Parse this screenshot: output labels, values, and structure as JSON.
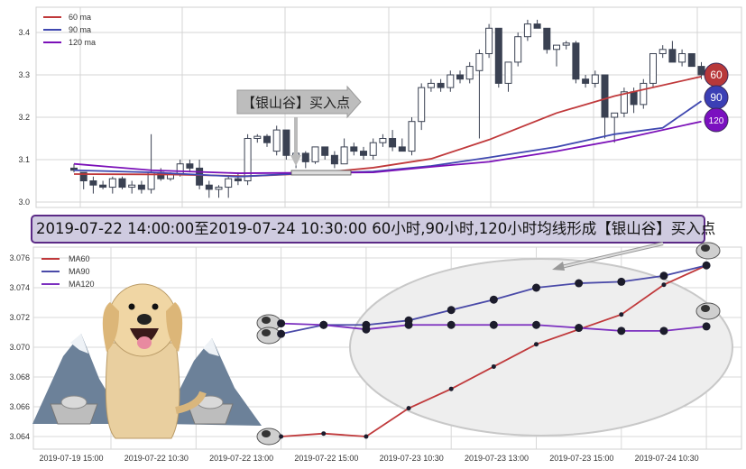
{
  "chart_data": [
    {
      "type": "candlestick",
      "ylim": [
        2.99,
        3.46
      ],
      "yticks": [
        "3.0",
        "3.1",
        "3.2",
        "3.3",
        "3.4"
      ],
      "grid": true,
      "legend_placement": "top-left",
      "candles_ohlc": [
        [
          3.08,
          3.09,
          3.07,
          3.075
        ],
        [
          3.07,
          3.07,
          3.03,
          3.05
        ],
        [
          3.05,
          3.06,
          3.02,
          3.04
        ],
        [
          3.04,
          3.05,
          3.03,
          3.035
        ],
        [
          3.035,
          3.06,
          3.02,
          3.055
        ],
        [
          3.055,
          3.06,
          3.03,
          3.035
        ],
        [
          3.035,
          3.05,
          3.02,
          3.04
        ],
        [
          3.04,
          3.05,
          3.02,
          3.03
        ],
        [
          3.03,
          3.16,
          3.02,
          3.07
        ],
        [
          3.07,
          3.08,
          3.05,
          3.055
        ],
        [
          3.055,
          3.07,
          3.05,
          3.065
        ],
        [
          3.065,
          3.1,
          3.06,
          3.09
        ],
        [
          3.09,
          3.1,
          3.07,
          3.08
        ],
        [
          3.08,
          3.1,
          3.03,
          3.04
        ],
        [
          3.04,
          3.05,
          3.01,
          3.03
        ],
        [
          3.03,
          3.04,
          3.01,
          3.035
        ],
        [
          3.035,
          3.06,
          3.01,
          3.055
        ],
        [
          3.055,
          3.07,
          3.04,
          3.05
        ],
        [
          3.05,
          3.16,
          3.04,
          3.15
        ],
        [
          3.15,
          3.16,
          3.14,
          3.155
        ],
        [
          3.155,
          3.16,
          3.13,
          3.14
        ],
        [
          3.12,
          3.18,
          3.11,
          3.17
        ],
        [
          3.17,
          3.17,
          3.1,
          3.11
        ],
        [
          3.11,
          3.12,
          3.08,
          3.115
        ],
        [
          3.115,
          3.12,
          3.08,
          3.095
        ],
        [
          3.095,
          3.13,
          3.09,
          3.13
        ],
        [
          3.13,
          3.13,
          3.1,
          3.11
        ],
        [
          3.11,
          3.12,
          3.08,
          3.09
        ],
        [
          3.09,
          3.15,
          3.09,
          3.13
        ],
        [
          3.13,
          3.14,
          3.11,
          3.12
        ],
        [
          3.12,
          3.13,
          3.1,
          3.11
        ],
        [
          3.11,
          3.15,
          3.1,
          3.14
        ],
        [
          3.14,
          3.16,
          3.13,
          3.15
        ],
        [
          3.15,
          3.17,
          3.12,
          3.13
        ],
        [
          3.13,
          3.15,
          3.12,
          3.12
        ],
        [
          3.12,
          3.2,
          3.11,
          3.19
        ],
        [
          3.19,
          3.28,
          3.17,
          3.27
        ],
        [
          3.27,
          3.29,
          3.26,
          3.28
        ],
        [
          3.28,
          3.29,
          3.26,
          3.27
        ],
        [
          3.27,
          3.31,
          3.26,
          3.3
        ],
        [
          3.3,
          3.31,
          3.28,
          3.29
        ],
        [
          3.29,
          3.33,
          3.28,
          3.32
        ],
        [
          3.31,
          3.36,
          3.15,
          3.35
        ],
        [
          3.35,
          3.42,
          3.34,
          3.41
        ],
        [
          3.41,
          3.41,
          3.27,
          3.28
        ],
        [
          3.28,
          3.33,
          3.26,
          3.33
        ],
        [
          3.33,
          3.4,
          3.32,
          3.39
        ],
        [
          3.39,
          3.43,
          3.38,
          3.42
        ],
        [
          3.42,
          3.43,
          3.41,
          3.41
        ],
        [
          3.41,
          3.41,
          3.35,
          3.36
        ],
        [
          3.36,
          3.37,
          3.32,
          3.37
        ],
        [
          3.37,
          3.38,
          3.36,
          3.375
        ],
        [
          3.375,
          3.38,
          3.28,
          3.29
        ],
        [
          3.29,
          3.3,
          3.27,
          3.28
        ],
        [
          3.28,
          3.31,
          3.27,
          3.3
        ],
        [
          3.3,
          3.3,
          3.15,
          3.2
        ],
        [
          3.2,
          3.21,
          3.14,
          3.21
        ],
        [
          3.21,
          3.27,
          3.2,
          3.26
        ],
        [
          3.26,
          3.27,
          3.21,
          3.23
        ],
        [
          3.23,
          3.29,
          3.22,
          3.28
        ],
        [
          3.28,
          3.35,
          3.27,
          3.35
        ],
        [
          3.35,
          3.37,
          3.34,
          3.36
        ],
        [
          3.36,
          3.38,
          3.33,
          3.33
        ],
        [
          3.33,
          3.36,
          3.32,
          3.35
        ],
        [
          3.35,
          3.35,
          3.32,
          3.32
        ],
        [
          3.32,
          3.33,
          3.29,
          3.3
        ]
      ],
      "series": [
        {
          "name": "60 ma",
          "color": "#c0393b",
          "points": [
            [
              0,
              3.066
            ],
            [
              10,
              3.065
            ],
            [
              18,
              3.061
            ],
            [
              25,
              3.068
            ],
            [
              31,
              3.081
            ],
            [
              37,
              3.102
            ],
            [
              43,
              3.147
            ],
            [
              50,
              3.21
            ],
            [
              56,
              3.25
            ],
            [
              65,
              3.296
            ]
          ]
        },
        {
          "name": "90 ma",
          "color": "#3f48b0",
          "points": [
            [
              0,
              3.075
            ],
            [
              8,
              3.07
            ],
            [
              17,
              3.06
            ],
            [
              24,
              3.068
            ],
            [
              31,
              3.072
            ],
            [
              37,
              3.085
            ],
            [
              43,
              3.105
            ],
            [
              50,
              3.13
            ],
            [
              56,
              3.16
            ],
            [
              61,
              3.175
            ],
            [
              65,
              3.238
            ]
          ]
        },
        {
          "name": "120 ma",
          "color": "#7b10b8",
          "points": [
            [
              0,
              3.09
            ],
            [
              8,
              3.075
            ],
            [
              17,
              3.068
            ],
            [
              31,
              3.07
            ],
            [
              37,
              3.083
            ],
            [
              43,
              3.095
            ],
            [
              50,
              3.12
            ],
            [
              56,
              3.145
            ],
            [
              65,
              3.19
            ]
          ]
        }
      ],
      "annotation": "【银山谷】买入点",
      "end_badges": [
        {
          "label": "60",
          "color": "#b8383a"
        },
        {
          "label": "90",
          "color": "#3b3fb5"
        },
        {
          "label": "120",
          "color": "#7b10c0"
        }
      ]
    },
    {
      "type": "line",
      "ylim": [
        3.0633,
        3.0762
      ],
      "yticks": [
        "3.064",
        "3.066",
        "3.068",
        "3.070",
        "3.072",
        "3.074",
        "3.076"
      ],
      "xticks": [
        "2019-07-19 15:00",
        "2019-07-22 10:30",
        "2019-07-22 13:00",
        "2019-07-22 15:00",
        "2019-07-23 10:30",
        "2019-07-23 13:00",
        "2019-07-23 15:00",
        "2019-07-24 10:30"
      ],
      "grid": true,
      "legend_placement": "top-left",
      "x": [
        2,
        2.5,
        3,
        3.5,
        4,
        4.5,
        5,
        5.5,
        6,
        6.5,
        7
      ],
      "series": [
        {
          "name": "MA60",
          "color": "#c0393b",
          "values": [
            3.064,
            3.0642,
            3.064,
            3.0659,
            3.0672,
            3.0687,
            3.0702,
            3.0712,
            3.0722,
            3.0742,
            3.0755
          ]
        },
        {
          "name": "MA90",
          "color": "#4a4aa8",
          "values": [
            3.0709,
            3.0715,
            3.0715,
            3.0718,
            3.0725,
            3.0732,
            3.074,
            3.0743,
            3.0744,
            3.0748,
            3.0755
          ]
        },
        {
          "name": "MA120",
          "color": "#7b2fbf",
          "values": [
            3.0716,
            3.0715,
            3.0712,
            3.0715,
            3.0715,
            3.0715,
            3.0715,
            3.0713,
            3.0711,
            3.0711,
            3.0714
          ]
        }
      ]
    }
  ],
  "banner": {
    "text": "2019-07-22 14:00:00至2019-07-24 10:30:00 60小时,90小时,120小时均线形成【银山谷】买入点",
    "bg": "#cfcbe0",
    "border": "#5b2a86"
  }
}
